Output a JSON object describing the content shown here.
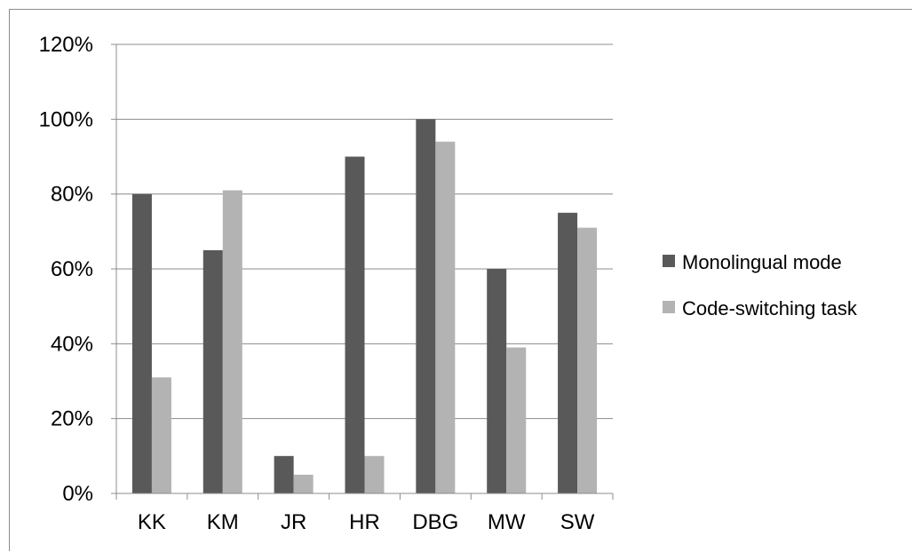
{
  "chart_data": {
    "type": "bar",
    "title": "",
    "xlabel": "",
    "ylabel": "",
    "categories": [
      "KK",
      "KM",
      "JR",
      "HR",
      "DBG",
      "MW",
      "SW"
    ],
    "series": [
      {
        "name": "Monolingual mode",
        "values": [
          80,
          65,
          10,
          90,
          100,
          60,
          75
        ],
        "color": "#595959"
      },
      {
        "name": "Code-switching task",
        "values": [
          31,
          81,
          5,
          10,
          94,
          39,
          71
        ],
        "color": "#b3b3b3"
      }
    ],
    "ylim": [
      0,
      120
    ],
    "yticks": [
      0,
      20,
      40,
      60,
      80,
      100,
      120
    ],
    "ytick_labels": [
      "0%",
      "20%",
      "40%",
      "60%",
      "80%",
      "100%",
      "120%"
    ],
    "grid": true,
    "legend_position": "right"
  }
}
